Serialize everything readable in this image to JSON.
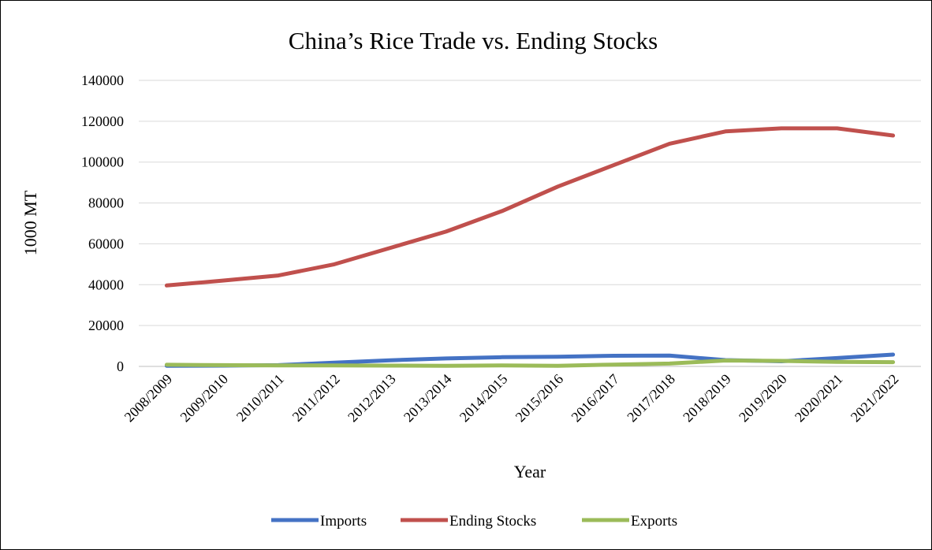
{
  "chart_data": {
    "type": "line",
    "title": "China’s Rice Trade vs. Ending Stocks",
    "xlabel": "Year",
    "ylabel": "1000  MT",
    "categories": [
      "2008/2009",
      "2009/2010",
      "2010/2011",
      "2011/2012",
      "2012/2013",
      "2013/2014",
      "2014/2015",
      "2015/2016",
      "2016/2017",
      "2017/2018",
      "2018/2019",
      "2019/2020",
      "2020/2021",
      "2021/2022"
    ],
    "ylim": [
      0,
      140000
    ],
    "yticks": [
      "0",
      "20000",
      "40000",
      "60000",
      "80000",
      "100000",
      "120000",
      "140000"
    ],
    "grid": true,
    "legend_position": "bottom",
    "series": [
      {
        "name": "Imports",
        "color": "#4472C4",
        "values": [
          300,
          400,
          600,
          1800,
          3000,
          3900,
          4500,
          4700,
          5200,
          5300,
          3100,
          2500,
          4100,
          5800
        ]
      },
      {
        "name": "Ending Stocks",
        "color": "#C0504D",
        "values": [
          39600,
          42000,
          44500,
          50000,
          58000,
          66000,
          76000,
          88000,
          98500,
          109000,
          115000,
          116500,
          116500,
          113000
        ]
      },
      {
        "name": "Exports",
        "color": "#9BBB59",
        "values": [
          800,
          600,
          500,
          500,
          400,
          300,
          500,
          300,
          900,
          1400,
          2900,
          2700,
          2200,
          2100
        ]
      }
    ]
  }
}
